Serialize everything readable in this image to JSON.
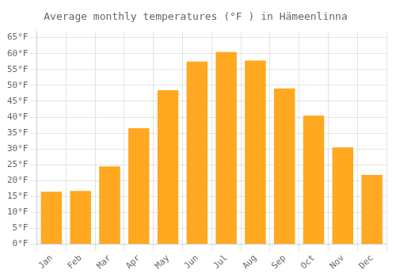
{
  "chart_data": {
    "type": "bar",
    "title": "Average monthly temperatures (°F ) in Hämeenlinna",
    "categories": [
      "Jan",
      "Feb",
      "Mar",
      "Apr",
      "May",
      "Jun",
      "Jul",
      "Aug",
      "Sep",
      "Oct",
      "Nov",
      "Dec"
    ],
    "values": [
      16.5,
      16.8,
      24.5,
      36.5,
      48.5,
      57.5,
      60.5,
      57.8,
      49.0,
      40.5,
      30.5,
      21.8
    ],
    "color": "#FFA820",
    "ylim": [
      0,
      67
    ],
    "yticks": [
      {
        "value": 0,
        "label": "0°F"
      },
      {
        "value": 5,
        "label": "5°F"
      },
      {
        "value": 10,
        "label": "10°F"
      },
      {
        "value": 15,
        "label": "15°F"
      },
      {
        "value": 20,
        "label": "20°F"
      },
      {
        "value": 25,
        "label": "25°F"
      },
      {
        "value": 30,
        "label": "30°F"
      },
      {
        "value": 35,
        "label": "35°F"
      },
      {
        "value": 40,
        "label": "40°F"
      },
      {
        "value": 45,
        "label": "45°F"
      },
      {
        "value": 50,
        "label": "50°F"
      },
      {
        "value": 55,
        "label": "55°F"
      },
      {
        "value": 60,
        "label": "60°F"
      },
      {
        "value": 65,
        "label": "65°F"
      }
    ],
    "grid": true
  }
}
